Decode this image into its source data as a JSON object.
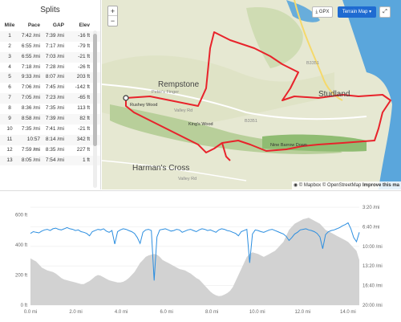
{
  "splits": {
    "title": "Splits",
    "columns": [
      "Mile",
      "Pace",
      "GAP",
      "Elev"
    ],
    "rows": [
      [
        "1",
        "7:42 /mi",
        "7:39 /mi",
        "-16 ft"
      ],
      [
        "2",
        "6:55 /mi",
        "7:17 /mi",
        "-79 ft"
      ],
      [
        "3",
        "6:55 /mi",
        "7:03 /mi",
        "-21 ft"
      ],
      [
        "4",
        "7:18 /mi",
        "7:28 /mi",
        "-26 ft"
      ],
      [
        "5",
        "9:33 /mi",
        "8:07 /mi",
        "203 ft"
      ],
      [
        "6",
        "7:06 /mi",
        "7:45 /mi",
        "-142 ft"
      ],
      [
        "7",
        "7:05 /mi",
        "7:23 /mi",
        "-65 ft"
      ],
      [
        "8",
        "8:36 /mi",
        "7:35 /mi",
        "113 ft"
      ],
      [
        "9",
        "8:58 /mi",
        "7:39 /mi",
        "82 ft"
      ],
      [
        "10",
        "7:35 /mi",
        "7:41 /mi",
        "-21 ft"
      ],
      [
        "11",
        "10:57 /mi",
        "8:14 /mi",
        "342 ft"
      ],
      [
        "12",
        "7:59 /mi",
        "8:35 /mi",
        "227 ft"
      ],
      [
        "13",
        "8:05 /mi",
        "7:54 /mi",
        "1 ft"
      ]
    ]
  },
  "map": {
    "zoom_in": "+",
    "zoom_out": "−",
    "gpx_label": "GPX",
    "terrain_label": "Terrain Map",
    "terrain_caret": "▾",
    "expand_label": "⤢",
    "attribution_mapbox": "© Mapbox",
    "attribution_osm": "© OpenStreetMap",
    "attribution_improve": "Improve this ma",
    "labels": {
      "rempstone": "Rempstone",
      "studland": "Studland",
      "harmans_cross": "Harman's Cross",
      "rushey_wood": "Rushey Wood",
      "kings_wood": "King's Wood",
      "nine_barrow_down": "Nine Barrow Down",
      "b3351_a": "B3351",
      "b3351_b": "B3351",
      "valley_rd_a": "Valley Rd",
      "valley_rd_b": "Valley Rd",
      "peters_finger": "Peter's Finger"
    },
    "colors": {
      "route": "#e8232b",
      "water": "#5aa6dc",
      "land": "#e9ead7",
      "forest": "#b9d3a2"
    }
  },
  "elevation": {
    "pace_labels": [
      "3:20 /mi",
      "6:40 /mi",
      "10:00 /mi",
      "13:20 /mi",
      "16:40 /mi",
      "20:00 /mi"
    ],
    "elev_labels": [
      "600 ft",
      "400 ft",
      "200 ft",
      "0 ft"
    ],
    "dist_labels": [
      "0.0 mi",
      "2.0 mi",
      "4.0 mi",
      "6.0 mi",
      "8.0 mi",
      "10.0 mi",
      "12.0 mi",
      "14.0 mi"
    ],
    "colors": {
      "pace_line": "#2b8ee0",
      "elev_fill": "#d2d2d2"
    },
    "x_range_mi": [
      0,
      14.5
    ],
    "elev_range_ft": [
      0,
      650
    ],
    "pace_range_min": [
      3.33,
      20
    ],
    "elev_profile_ft": [
      310,
      300,
      290,
      270,
      250,
      240,
      230,
      225,
      220,
      210,
      195,
      180,
      170,
      165,
      160,
      155,
      150,
      145,
      140,
      140,
      150,
      160,
      175,
      190,
      200,
      195,
      185,
      175,
      165,
      160,
      155,
      150,
      150,
      155,
      165,
      180,
      200,
      220,
      250,
      280,
      300,
      320,
      330,
      335,
      340,
      335,
      320,
      300,
      290,
      280,
      270,
      260,
      250,
      240,
      235,
      230,
      220,
      210,
      195,
      180,
      170,
      150,
      130,
      110,
      90,
      75,
      65,
      60,
      62,
      70,
      80,
      95,
      120,
      160,
      200,
      240,
      280,
      320,
      340,
      350,
      345,
      340,
      330,
      320,
      330,
      340,
      350,
      360,
      380,
      400,
      420,
      460,
      500,
      520,
      540,
      550,
      560,
      570,
      575,
      580,
      570,
      560,
      550,
      540,
      520,
      500,
      490,
      480,
      470,
      460,
      450,
      440,
      430,
      420,
      400,
      380,
      360,
      300
    ],
    "pace_profile_min": [
      7.8,
      7.5,
      7.6,
      7.7,
      7.4,
      7.2,
      7.1,
      7.3,
      7.0,
      6.9,
      7.1,
      7.2,
      7.0,
      6.8,
      7.0,
      7.1,
      7.3,
      7.2,
      7.5,
      7.6,
      7.8,
      8.2,
      7.5,
      7.3,
      7.1,
      7.2,
      7.0,
      7.4,
      7.6,
      7.3,
      9.6,
      7.5,
      7.2,
      7.0,
      7.1,
      7.3,
      7.5,
      7.8,
      8.5,
      9.5,
      7.6,
      7.2,
      7.1,
      7.3,
      15.8,
      8.4,
      7.2,
      7.1,
      7.0,
      7.2,
      7.4,
      7.3,
      7.1,
      7.2,
      7.6,
      7.4,
      7.2,
      7.1,
      7.3,
      7.5,
      7.2,
      7.0,
      7.1,
      7.3,
      7.2,
      7.4,
      7.6,
      7.2,
      7.0,
      7.1,
      7.3,
      7.4,
      7.6,
      7.8,
      8.2,
      7.5,
      7.3,
      7.1,
      12.8,
      7.9,
      7.2,
      7.3,
      7.5,
      7.6,
      7.4,
      7.2,
      7.1,
      7.3,
      7.5,
      7.7,
      7.9,
      8.3,
      9.0,
      8.5,
      7.9,
      7.6,
      7.2,
      7.1,
      7.0,
      7.2,
      7.3,
      7.5,
      7.8,
      8.4,
      10.4,
      8.0,
      7.5,
      7.3,
      7.2,
      7.0,
      6.8,
      6.5,
      6.3,
      6.0,
      7.0,
      8.5,
      9.2,
      7.6
    ]
  }
}
